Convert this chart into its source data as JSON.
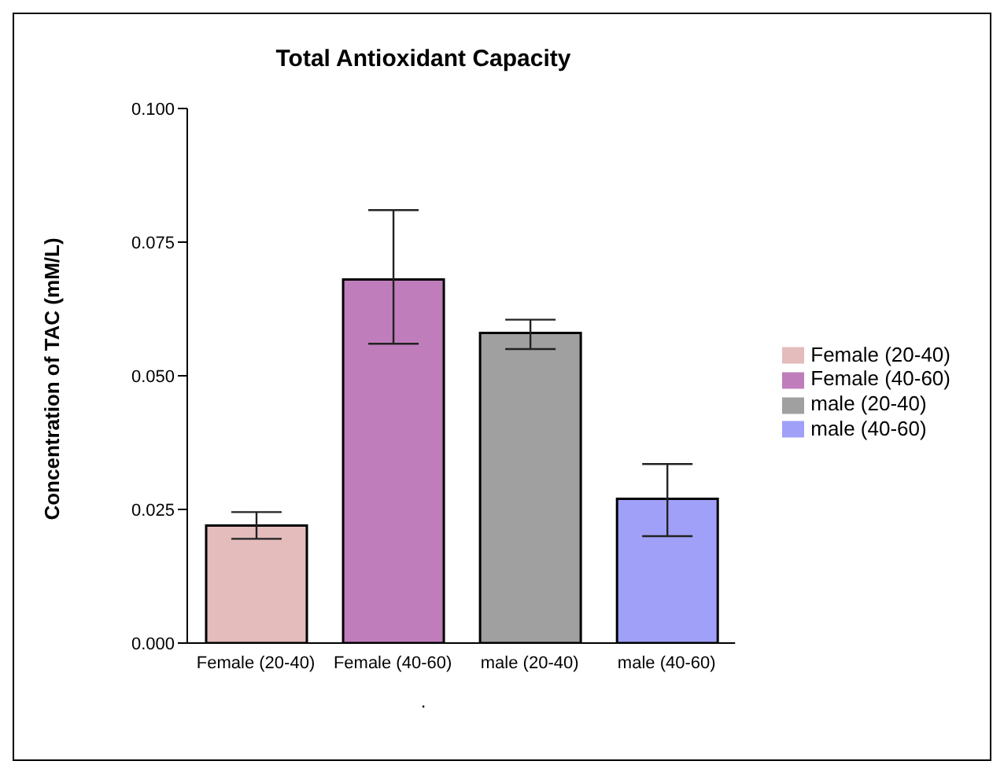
{
  "chart_data": {
    "type": "bar",
    "title": "Total Antioxidant Capacity",
    "ylabel": "Concentration of TAC (mM/L)",
    "categories": [
      "Female (20-40)",
      "Female (40-60)",
      "male (20-40)",
      "male (40-60)"
    ],
    "series": [
      {
        "name": "Female (20-40)",
        "color": "#e4bcbc",
        "values": [
          0.022,
          null,
          null,
          null
        ],
        "errors": [
          [
            0.0195,
            0.0245
          ],
          null,
          null,
          null
        ]
      },
      {
        "name": "Female (40-60)",
        "color": "#bf7dbb",
        "values": [
          null,
          0.068,
          null,
          null
        ],
        "errors": [
          null,
          [
            0.056,
            0.081
          ],
          null,
          null
        ]
      },
      {
        "name": "male (20-40)",
        "color": "#a0a0a0",
        "values": [
          null,
          null,
          0.058,
          null
        ],
        "errors": [
          null,
          null,
          [
            0.055,
            0.0605
          ],
          null
        ]
      },
      {
        "name": "male (40-60)",
        "color": "#a0a0f8",
        "values": [
          null,
          null,
          null,
          0.027
        ],
        "errors": [
          null,
          null,
          null,
          [
            0.02,
            0.0335
          ]
        ]
      }
    ],
    "ylim": [
      0,
      0.1
    ],
    "yticks": [
      {
        "value": 0,
        "label": "0.000"
      },
      {
        "value": 0.025,
        "label": "0.025"
      },
      {
        "value": 0.05,
        "label": "0.050"
      },
      {
        "value": 0.075,
        "label": "0.075"
      },
      {
        "value": 0.1,
        "label": "0.100"
      }
    ],
    "legend": "right",
    "annotations": [
      "."
    ]
  }
}
